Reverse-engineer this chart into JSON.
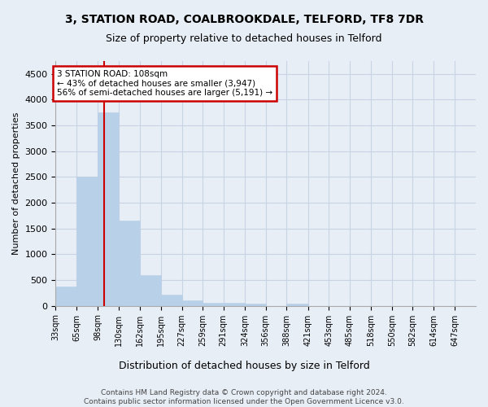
{
  "title": "3, STATION ROAD, COALBROOKDALE, TELFORD, TF8 7DR",
  "subtitle": "Size of property relative to detached houses in Telford",
  "xlabel": "Distribution of detached houses by size in Telford",
  "ylabel": "Number of detached properties",
  "bar_color": "#b8d0e8",
  "bar_edge_color": "#b8d0e8",
  "grid_color": "#c8d4e4",
  "background_color": "#e8eef6",
  "vline_color": "#cc0000",
  "vline_x": 108,
  "annotation_text": "3 STATION ROAD: 108sqm\n← 43% of detached houses are smaller (3,947)\n56% of semi-detached houses are larger (5,191) →",
  "annotation_box_color": "#ffffff",
  "annotation_box_edge_color": "#cc0000",
  "footer_text": "Contains HM Land Registry data © Crown copyright and database right 2024.\nContains public sector information licensed under the Open Government Licence v3.0.",
  "bin_edges": [
    33,
    65,
    98,
    130,
    162,
    195,
    227,
    259,
    291,
    324,
    356,
    388,
    421,
    453,
    485,
    518,
    550,
    582,
    614,
    647,
    679
  ],
  "bar_heights": [
    375,
    2500,
    3750,
    1650,
    600,
    225,
    100,
    60,
    60,
    40,
    0,
    50,
    0,
    0,
    0,
    0,
    0,
    0,
    0,
    0
  ],
  "ylim": [
    0,
    4750
  ],
  "yticks": [
    0,
    500,
    1000,
    1500,
    2000,
    2500,
    3000,
    3500,
    4000,
    4500
  ],
  "figsize": [
    6.0,
    5.0
  ],
  "dpi": 100
}
